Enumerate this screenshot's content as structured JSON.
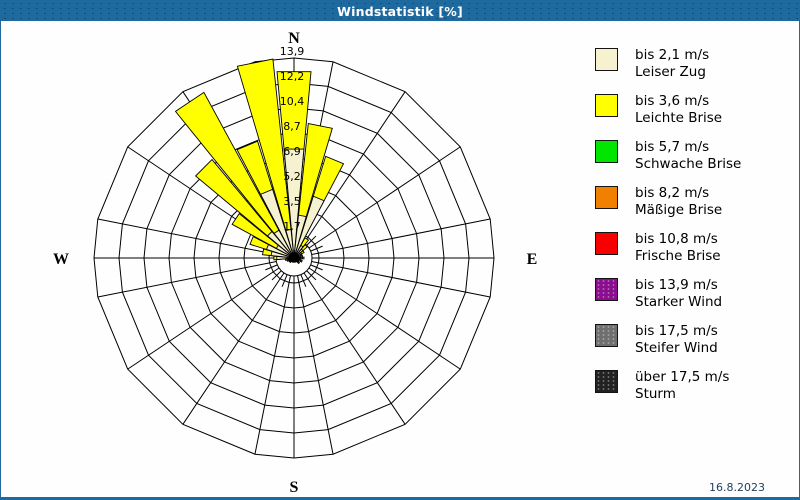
{
  "window": {
    "title": "Windstatistik [%]",
    "date": "16.8.2023"
  },
  "theme": {
    "title_bar": "#1E699E",
    "border": "#1E699E",
    "background": "#FDFEFD",
    "grid": "#000000",
    "date_color": "#23405C"
  },
  "chart_data": {
    "type": "wind-rose",
    "title": "Windstatistik [%]",
    "unit": "%",
    "num_directions": 32,
    "max_value": 13.9,
    "grid": "polar, 8 rings, radial lines at 16 sector boundaries plus N/E/S/W axes",
    "ring_values": [
      1.7,
      3.5,
      5.2,
      6.9,
      8.7,
      10.4,
      12.2,
      13.9
    ],
    "ring_labels": [
      "1,7",
      "3,5",
      "5,2",
      "6,9",
      "8,7",
      "10,4",
      "12,2",
      "13,9"
    ],
    "compass_labels": {
      "n": "N",
      "e": "E",
      "s": "S",
      "w": "W"
    },
    "speed_classes": [
      {
        "speed": "bis 2,1 m/s",
        "name": "Leiser Zug",
        "color": "#F6F2D0",
        "dotted": false
      },
      {
        "speed": "bis 3,6 m/s",
        "name": "Leichte Brise",
        "color": "#FFFF00",
        "dotted": false
      },
      {
        "speed": "bis 5,7 m/s",
        "name": "Schwache Brise",
        "color": "#00E600",
        "dotted": false
      },
      {
        "speed": "bis 8,2 m/s",
        "name": "Mäßige Brise",
        "color": "#F28000",
        "dotted": false
      },
      {
        "speed": "bis 10,8 m/s",
        "name": "Frische Brise",
        "color": "#F80000",
        "dotted": false
      },
      {
        "speed": "bis 13,9 m/s",
        "name": "Starker Wind",
        "color": "#8B0E8E",
        "dotted": true
      },
      {
        "speed": "bis 17,5 m/s",
        "name": "Steifer Wind",
        "color": "#6F6F6F",
        "dotted": true
      },
      {
        "speed": "über 17,5 m/s",
        "name": "Sturm",
        "color": "#222222",
        "dotted": true
      }
    ],
    "bins_note": "deg = direction clockwise from N; cum = cumulative % [bis 2,1 m/s, bis 3,6 m/s]; higher speed classes have 0 everywhere",
    "bins": [
      {
        "deg": 0.0,
        "cum": [
          7.6,
          13.0
        ]
      },
      {
        "deg": 11.25,
        "cum": [
          3.0,
          9.4
        ]
      },
      {
        "deg": 22.5,
        "cum": [
          4.5,
          7.4
        ]
      },
      {
        "deg": 33.75,
        "cum": [
          1.0,
          1.6
        ]
      },
      {
        "deg": 45.0,
        "cum": [
          0.8,
          1.2
        ]
      },
      {
        "deg": 56.25,
        "cum": [
          0.6,
          0.8
        ]
      },
      {
        "deg": 67.5,
        "cum": [
          0.5,
          0.6
        ]
      },
      {
        "deg": 78.75,
        "cum": [
          0.5,
          0.6
        ]
      },
      {
        "deg": 90.0,
        "cum": [
          0.6,
          0.7
        ]
      },
      {
        "deg": 101.25,
        "cum": [
          0.4,
          0.5
        ]
      },
      {
        "deg": 112.5,
        "cum": [
          0.5,
          0.6
        ]
      },
      {
        "deg": 123.75,
        "cum": [
          0.3,
          0.4
        ]
      },
      {
        "deg": 135.0,
        "cum": [
          0.4,
          0.5
        ]
      },
      {
        "deg": 146.25,
        "cum": [
          0.3,
          0.3
        ]
      },
      {
        "deg": 157.5,
        "cum": [
          0.3,
          0.3
        ]
      },
      {
        "deg": 168.75,
        "cum": [
          0.2,
          0.2
        ]
      },
      {
        "deg": 180.0,
        "cum": [
          0.3,
          0.3
        ]
      },
      {
        "deg": 191.25,
        "cum": [
          0.2,
          0.2
        ]
      },
      {
        "deg": 202.5,
        "cum": [
          0.2,
          0.3
        ]
      },
      {
        "deg": 213.75,
        "cum": [
          0.3,
          0.3
        ]
      },
      {
        "deg": 225.0,
        "cum": [
          0.3,
          0.4
        ]
      },
      {
        "deg": 236.25,
        "cum": [
          0.4,
          0.4
        ]
      },
      {
        "deg": 247.5,
        "cum": [
          0.4,
          0.5
        ]
      },
      {
        "deg": 258.75,
        "cum": [
          0.5,
          0.6
        ]
      },
      {
        "deg": 270.0,
        "cum": [
          1.2,
          1.4
        ]
      },
      {
        "deg": 281.25,
        "cum": [
          1.6,
          2.2
        ]
      },
      {
        "deg": 292.5,
        "cum": [
          2.0,
          3.2
        ]
      },
      {
        "deg": 303.75,
        "cum": [
          1.4,
          4.9
        ]
      },
      {
        "deg": 315.0,
        "cum": [
          2.4,
          8.9
        ]
      },
      {
        "deg": 326.25,
        "cum": [
          2.2,
          13.1
        ]
      },
      {
        "deg": 337.5,
        "cum": [
          5.0,
          8.5
        ]
      },
      {
        "deg": 348.75,
        "cum": [
          2.0,
          13.9
        ]
      }
    ]
  },
  "legend": {
    "source": "chart_data.speed_classes"
  }
}
